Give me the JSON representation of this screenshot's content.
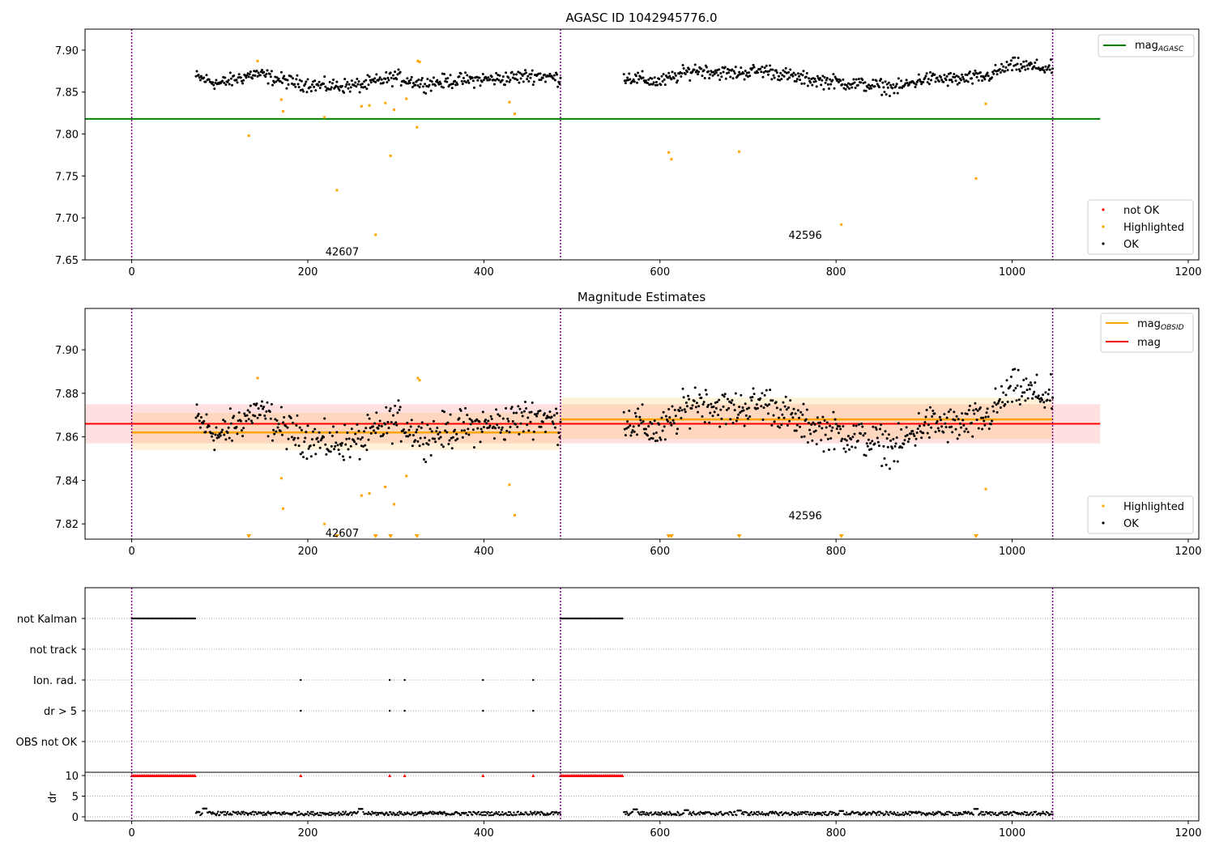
{
  "chart_data": [
    {
      "type": "scatter",
      "title": "AGASC ID 1042945776.0",
      "xlim": [
        -53,
        1212
      ],
      "ylim": [
        7.65,
        7.925
      ],
      "xticks": [
        0,
        200,
        400,
        600,
        800,
        1000,
        1200
      ],
      "xtick_labels": [
        "0",
        "200",
        "400",
        "600",
        "800",
        "1000",
        "1200"
      ],
      "yticks": [
        7.65,
        7.7,
        7.75,
        7.8,
        7.85,
        7.9
      ],
      "ytick_labels": [
        "7.65",
        "7.70",
        "7.75",
        "7.80",
        "7.85",
        "7.90"
      ],
      "obs_boundaries": [
        0,
        487,
        1046
      ],
      "obs_annotations": [
        {
          "text": "42607",
          "x": 220,
          "y": 7.66
        },
        {
          "text": "42596",
          "x": 746,
          "y": 7.68
        }
      ],
      "mag_agasc": {
        "value": 7.818,
        "x_range": [
          -53,
          1100
        ],
        "color": "#008000"
      },
      "legend_line": {
        "label": "mag",
        "sub": "AGASC"
      },
      "legend_points": [
        "not OK",
        "Highlighted",
        "OK"
      ],
      "ok_segments": [
        {
          "x_start": 73,
          "x_end": 487,
          "anchors": [
            [
              73,
              7.868
            ],
            [
              100,
              7.86
            ],
            [
              140,
              7.872
            ],
            [
              180,
              7.862
            ],
            [
              220,
              7.857
            ],
            [
              260,
              7.858
            ],
            [
              300,
              7.868
            ],
            [
              330,
              7.86
            ],
            [
              370,
              7.864
            ],
            [
              420,
              7.866
            ],
            [
              460,
              7.87
            ],
            [
              487,
              7.866
            ]
          ],
          "noise": 0.006
        },
        {
          "x_start": 559,
          "x_end": 1046,
          "anchors": [
            [
              559,
              7.868
            ],
            [
              600,
              7.862
            ],
            [
              640,
              7.877
            ],
            [
              680,
              7.872
            ],
            [
              720,
              7.876
            ],
            [
              760,
              7.866
            ],
            [
              800,
              7.862
            ],
            [
              840,
              7.858
            ],
            [
              870,
              7.855
            ],
            [
              900,
              7.866
            ],
            [
              940,
              7.865
            ],
            [
              970,
              7.868
            ],
            [
              1000,
              7.882
            ],
            [
              1046,
              7.878
            ]
          ],
          "noise": 0.006
        }
      ],
      "highlighted": [
        [
          133,
          7.798
        ],
        [
          143,
          7.887
        ],
        [
          170,
          7.841
        ],
        [
          172,
          7.827
        ],
        [
          219,
          7.82
        ],
        [
          233,
          7.733
        ],
        [
          261,
          7.833
        ],
        [
          270,
          7.834
        ],
        [
          277,
          7.68
        ],
        [
          288,
          7.837
        ],
        [
          294,
          7.774
        ],
        [
          298,
          7.829
        ],
        [
          312,
          7.842
        ],
        [
          324,
          7.808
        ],
        [
          325,
          7.887
        ],
        [
          327,
          7.886
        ],
        [
          429,
          7.838
        ],
        [
          435,
          7.824
        ],
        [
          610,
          7.778
        ],
        [
          613,
          7.77
        ],
        [
          690,
          7.779
        ],
        [
          806,
          7.692
        ],
        [
          959,
          7.747
        ],
        [
          970,
          7.836
        ]
      ],
      "colors": {
        "ok": "#000000",
        "highlighted": "#ffa500",
        "not_ok": "#ff0000",
        "boundary": "#800080"
      }
    },
    {
      "type": "scatter",
      "title": "Magnitude Estimates",
      "xlim": [
        -53,
        1212
      ],
      "ylim": [
        7.813,
        7.919
      ],
      "xticks": [
        0,
        200,
        400,
        600,
        800,
        1000,
        1200
      ],
      "xtick_labels": [
        "0",
        "200",
        "400",
        "600",
        "800",
        "1000",
        "1200"
      ],
      "yticks": [
        7.82,
        7.84,
        7.86,
        7.88,
        7.9
      ],
      "ytick_labels": [
        "7.82",
        "7.84",
        "7.86",
        "7.88",
        "7.90"
      ],
      "obs_annotations": [
        {
          "text": "42607",
          "x": 220,
          "y": 7.816
        },
        {
          "text": "42596",
          "x": 746,
          "y": 7.824
        }
      ],
      "mag": {
        "value": 7.866,
        "band": [
          7.857,
          7.875
        ],
        "x_range": [
          -53,
          1100
        ],
        "color": "#ff0000"
      },
      "mag_obsid": [
        {
          "x_start": 0,
          "x_end": 487,
          "value": 7.862,
          "band": [
            7.854,
            7.871
          ]
        },
        {
          "x_start": 487,
          "x_end": 1046,
          "value": 7.868,
          "band": [
            7.859,
            7.878
          ]
        }
      ],
      "legend_lines": [
        {
          "label": "mag",
          "sub": "OBSID"
        },
        {
          "label": "mag",
          "sub": ""
        }
      ],
      "legend_points": [
        "Highlighted",
        "OK"
      ],
      "out_of_range_markers_x": [
        133,
        233,
        277,
        294,
        324,
        610,
        613,
        690,
        806,
        959
      ],
      "colors": {
        "mag_obsid": "#ffa500"
      }
    },
    {
      "type": "scatter",
      "title": "",
      "flag_rows": [
        "not Kalman",
        "not track",
        "Ion. rad.",
        "dr > 5",
        "OBS not OK"
      ],
      "flag_events": {
        "not Kalman": {
          "ranges": [
            [
              0,
              73
            ],
            [
              487,
              559
            ]
          ],
          "points": []
        },
        "not track": {
          "ranges": [],
          "points": []
        },
        "Ion. rad.": {
          "ranges": [],
          "points": [
            192,
            293,
            310,
            399,
            456
          ]
        },
        "dr > 5": {
          "ranges": [],
          "points": [
            192,
            293,
            310,
            399,
            456
          ]
        },
        "OBS not OK": {
          "ranges": [],
          "points": []
        }
      },
      "dr": {
        "ylabel": "dr",
        "yticks": [
          0,
          5,
          10
        ],
        "ytick_labels": [
          "0",
          "5",
          "10"
        ],
        "ylim": [
          -0.5,
          10.5
        ],
        "clipped_value": 10,
        "clipped_points": [
          192,
          293,
          310,
          399,
          456
        ],
        "segments": [
          [
            73,
            487
          ],
          [
            559,
            1046
          ]
        ],
        "typical": 0.8,
        "spikes": [
          [
            83,
            2.0
          ],
          [
            260,
            1.9
          ],
          [
            572,
            1.8
          ],
          [
            630,
            1.6
          ],
          [
            690,
            1.5
          ],
          [
            806,
            1.4
          ],
          [
            959,
            1.9
          ]
        ]
      },
      "xticks": [
        0,
        200,
        400,
        600,
        800,
        1000,
        1200
      ],
      "xtick_labels": [
        "0",
        "200",
        "400",
        "600",
        "800",
        "1000",
        "1200"
      ]
    }
  ]
}
